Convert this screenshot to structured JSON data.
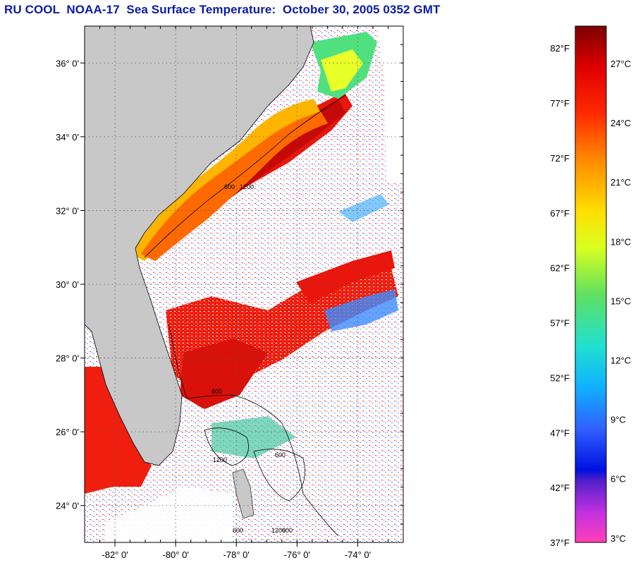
{
  "title": "RU COOL  NOAA-17  Sea Surface Temperature:  October 30, 2005 0352 GMT",
  "map": {
    "lon_range": [
      -83.0,
      -72.5
    ],
    "lat_range": [
      23.0,
      37.0
    ],
    "lat_ticks": [
      {
        "value": 36,
        "label": "36° 0'"
      },
      {
        "value": 34,
        "label": "34° 0'"
      },
      {
        "value": 32,
        "label": "32° 0'"
      },
      {
        "value": 30,
        "label": "30° 0'"
      },
      {
        "value": 28,
        "label": "28° 0'"
      },
      {
        "value": 26,
        "label": "26° 0'"
      },
      {
        "value": 24,
        "label": "24° 0'"
      }
    ],
    "lon_ticks": [
      {
        "value": -82,
        "label": "-82° 0'"
      },
      {
        "value": -80,
        "label": "-80° 0'"
      },
      {
        "value": -78,
        "label": "-78° 0'"
      },
      {
        "value": -76,
        "label": "-76° 0'"
      },
      {
        "value": -74,
        "label": "-74° 0'"
      }
    ],
    "colors": {
      "land": "#c8c8c8",
      "grid": "#555555",
      "frame": "#000000"
    },
    "contour_labels": [
      "600",
      "1200",
      "600",
      "1200",
      "600",
      "600",
      "1200",
      "600"
    ]
  },
  "colorbar": {
    "range_f": [
      37,
      84
    ],
    "fahrenheit_labels": [
      "82°F",
      "77°F",
      "72°F",
      "67°F",
      "62°F",
      "57°F",
      "52°F",
      "47°F",
      "42°F",
      "37°F"
    ],
    "fahrenheit_values": [
      82,
      77,
      72,
      67,
      62,
      57,
      52,
      47,
      42,
      37
    ],
    "celsius_labels": [
      "27°C",
      "24°C",
      "21°C",
      "18°C",
      "15°C",
      "12°C",
      "9°C",
      "6°C",
      "3°C"
    ],
    "celsius_values": [
      27,
      24,
      21,
      18,
      15,
      12,
      9,
      6,
      3
    ]
  }
}
